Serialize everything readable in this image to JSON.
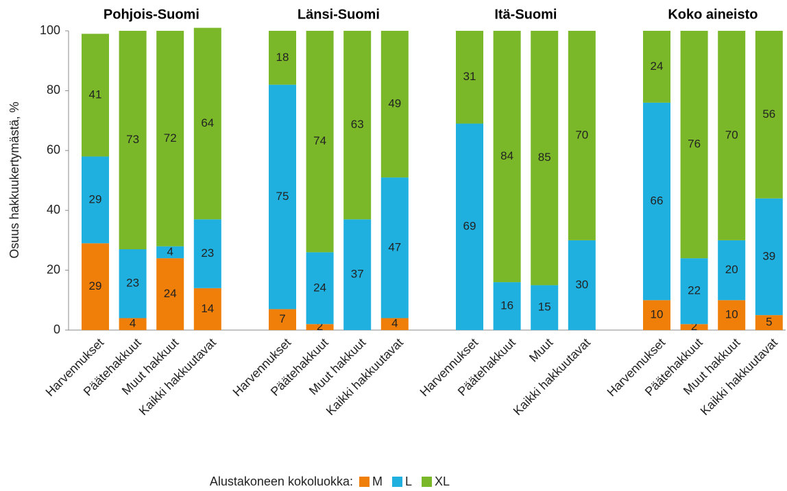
{
  "chart_data": {
    "type": "bar",
    "stacked": true,
    "y_label": "Osuus hakkuukertymästä, %",
    "groups": [
      {
        "name": "Pohjois-Suomi",
        "categories": [
          "Harvennukset",
          "Päätehakkuut",
          "Muut hakkuut",
          "Kaikki hakkuutavat"
        ]
      },
      {
        "name": "Länsi-Suomi",
        "categories": [
          "Harvennukset",
          "Päätehakkuut",
          "Muut hakkuut",
          "Kaikki hakkuutavat"
        ]
      },
      {
        "name": "Itä-Suomi",
        "categories": [
          "Harvennukset",
          "Päätehakkuut",
          "Muut",
          "Kaikki hakkuutavat"
        ]
      },
      {
        "name": "Koko aineisto",
        "categories": [
          "Harvennukset",
          "Päätehakkuut",
          "Muut hakkuut",
          "Kaikki hakkuutavat"
        ]
      }
    ],
    "legend_title": "Alustakoneen kokoluokka:",
    "series": [
      {
        "name": "M",
        "color": "#f07f09",
        "values": [
          29,
          4,
          24,
          14,
          7,
          2,
          null,
          4,
          null,
          null,
          null,
          null,
          10,
          2,
          10,
          5
        ]
      },
      {
        "name": "L",
        "color": "#1fb0e0",
        "values": [
          29,
          23,
          4,
          23,
          75,
          24,
          37,
          47,
          69,
          16,
          15,
          30,
          66,
          22,
          20,
          39
        ]
      },
      {
        "name": "XL",
        "color": "#7ab829",
        "values": [
          41,
          73,
          72,
          64,
          18,
          74,
          63,
          49,
          31,
          84,
          85,
          70,
          24,
          76,
          70,
          56
        ]
      }
    ],
    "ylim": [
      0,
      100
    ],
    "yticks": [
      0,
      20,
      40,
      60,
      80,
      100
    ],
    "grid": false,
    "legend": "bottom"
  }
}
